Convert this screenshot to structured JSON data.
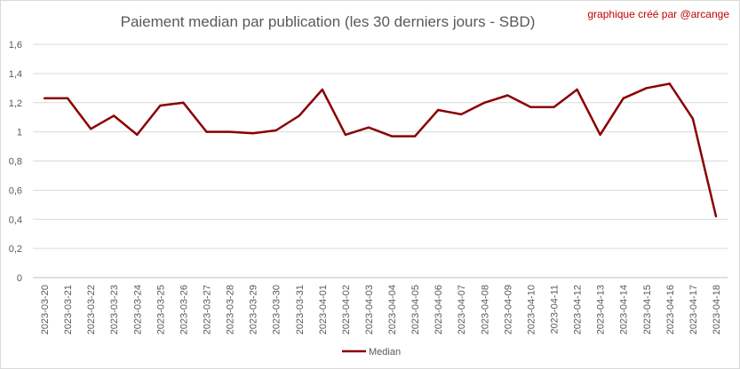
{
  "colors": {
    "series": "#8b0000",
    "credit": "#c00000",
    "text": "#595959",
    "grid": "#d9d9d9"
  },
  "chart_data": {
    "type": "line",
    "title": "Paiement median par publication (les 30 derniers jours - SBD)",
    "credit": "graphique créé par @arcange",
    "xlabel": "",
    "ylabel": "",
    "ylim": [
      0,
      1.6
    ],
    "y_ticks": [
      "0",
      "0,2",
      "0,4",
      "0,6",
      "0,8",
      "1",
      "1,2",
      "1,4",
      "1,6"
    ],
    "y_tick_values": [
      0,
      0.2,
      0.4,
      0.6,
      0.8,
      1,
      1.2,
      1.4,
      1.6
    ],
    "grid": true,
    "legend_position": "bottom",
    "x": [
      "2023-03-20",
      "2023-03-21",
      "2023-03-22",
      "2023-03-23",
      "2023-03-24",
      "2023-03-25",
      "2023-03-26",
      "2023-03-27",
      "2023-03-28",
      "2023-03-29",
      "2023-03-30",
      "2023-03-31",
      "2023-04-01",
      "2023-04-02",
      "2023-04-03",
      "2023-04-04",
      "2023-04-05",
      "2023-04-06",
      "2023-04-07",
      "2023-04-08",
      "2023-04-09",
      "2023-04-10",
      "2023-04-11",
      "2023-04-12",
      "2023-04-13",
      "2023-04-14",
      "2023-04-15",
      "2023-04-16",
      "2023-04-17",
      "2023-04-18"
    ],
    "series": [
      {
        "name": "Median",
        "values": [
          1.23,
          1.23,
          1.02,
          1.11,
          0.98,
          1.18,
          1.2,
          1.0,
          1.0,
          0.99,
          1.01,
          1.11,
          1.29,
          0.98,
          1.03,
          0.97,
          0.97,
          1.15,
          1.12,
          1.2,
          1.25,
          1.17,
          1.17,
          1.29,
          0.98,
          1.23,
          1.3,
          1.33,
          1.09,
          0.42
        ]
      }
    ]
  }
}
